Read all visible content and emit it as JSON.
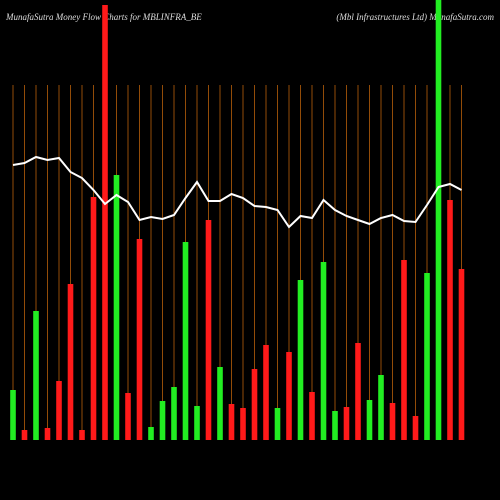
{
  "chart_data": {
    "type": "bar_line",
    "title": "MunafaSutra  Money Flow  Charts for MBLINFRA_BE",
    "subtitle": "(Mbl Infrastructures Ltd) MunafaSutra.com",
    "ylim": [
      0,
      440
    ],
    "grid": true,
    "grid_color": "#b8600b",
    "series": [
      {
        "name": "Money Flow",
        "kind": "bar",
        "colors": [
          "#22ee22",
          "#ff1a1a",
          "#22ee22",
          "#ff1a1a",
          "#ff1a1a",
          "#ff1a1a",
          "#ff1a1a",
          "#ff1a1a",
          "#ff1a1a",
          "#22ee22",
          "#ff1a1a",
          "#ff1a1a",
          "#22ee22",
          "#22ee22",
          "#22ee22",
          "#22ee22",
          "#22ee22",
          "#ff1a1a",
          "#22ee22",
          "#ff1a1a",
          "#ff1a1a",
          "#ff1a1a",
          "#ff1a1a",
          "#22ee22",
          "#ff1a1a",
          "#22ee22",
          "#ff1a1a",
          "#22ee22",
          "#22ee22",
          "#ff1a1a",
          "#ff1a1a",
          "#22ee22",
          "#22ee22",
          "#ff1a1a",
          "#ff1a1a",
          "#ff1a1a",
          "#22ee22",
          "#22ee22",
          "#ff1a1a",
          "#ff1a1a"
        ],
        "values": [
          50,
          10,
          129,
          12,
          59,
          156,
          10,
          243,
          435,
          265,
          47,
          201,
          13,
          39,
          53,
          198,
          34,
          220,
          73,
          36,
          32,
          71,
          95,
          32,
          88,
          160,
          48,
          178,
          29,
          33,
          97,
          40,
          65,
          37,
          180,
          24,
          167,
          440,
          240,
          171
        ]
      },
      {
        "name": "Price",
        "kind": "line",
        "color": "#ffffff",
        "values": [
          275,
          277,
          283,
          280,
          282,
          268,
          262,
          250,
          236,
          245,
          238,
          220,
          223,
          221,
          225,
          242,
          258,
          239,
          239,
          246,
          242,
          234,
          233,
          230,
          213,
          224,
          222,
          240,
          230,
          224,
          220,
          216,
          222,
          225,
          219,
          218,
          235,
          253,
          256,
          250
        ]
      }
    ]
  }
}
